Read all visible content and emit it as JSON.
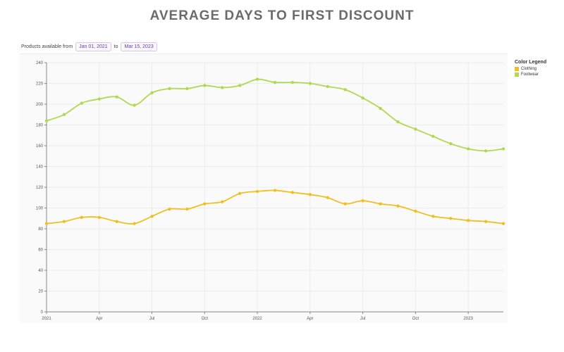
{
  "title": "AVERAGE DAYS TO FIRST DISCOUNT",
  "filter": {
    "prefix": "Products available from",
    "start": "Jan 01, 2021",
    "joiner": "to",
    "end": "Mar 15, 2023"
  },
  "legend": {
    "title": "Color Legend",
    "items": [
      {
        "label": "Clothing",
        "color": "#f0c020"
      },
      {
        "label": "Footwear",
        "color": "#b0d850"
      }
    ]
  },
  "chart_data": {
    "type": "line",
    "title": "AVERAGE DAYS TO FIRST DISCOUNT",
    "xlabel": "",
    "ylabel": "",
    "ylim": [
      0,
      240
    ],
    "yticks": [
      0,
      20,
      40,
      60,
      80,
      100,
      120,
      140,
      160,
      180,
      200,
      220,
      240
    ],
    "x": [
      "2021-01",
      "2021-02",
      "2021-03",
      "2021-04",
      "2021-05",
      "2021-06",
      "2021-07",
      "2021-08",
      "2021-09",
      "2021-10",
      "2021-11",
      "2021-12",
      "2022-01",
      "2022-02",
      "2022-03",
      "2022-04",
      "2022-05",
      "2022-06",
      "2022-07",
      "2022-08",
      "2022-09",
      "2022-10",
      "2022-11",
      "2022-12",
      "2023-01",
      "2023-02",
      "2023-03"
    ],
    "xticks": [
      {
        "x": "2021-01",
        "label": "2021"
      },
      {
        "x": "2021-04",
        "label": "Apr"
      },
      {
        "x": "2021-07",
        "label": "Jul"
      },
      {
        "x": "2021-10",
        "label": "Oct"
      },
      {
        "x": "2022-01",
        "label": "2022"
      },
      {
        "x": "2022-04",
        "label": "Apr"
      },
      {
        "x": "2022-07",
        "label": "Jul"
      },
      {
        "x": "2022-10",
        "label": "Oct"
      },
      {
        "x": "2023-01",
        "label": "2023"
      }
    ],
    "grid": true,
    "legend_position": "right",
    "series": [
      {
        "name": "Clothing",
        "color": "#f0c020",
        "values": [
          85,
          87,
          91,
          91,
          87,
          85,
          92,
          99,
          99,
          104,
          106,
          114,
          116,
          117,
          115,
          113,
          110,
          104,
          107,
          104,
          102,
          97,
          92,
          90,
          88,
          87,
          85
        ]
      },
      {
        "name": "Footwear",
        "color": "#b0d850",
        "values": [
          184,
          190,
          201,
          205,
          207,
          199,
          211,
          215,
          215,
          218,
          216,
          218,
          224,
          221,
          221,
          220,
          217,
          214,
          206,
          196,
          183,
          176,
          169,
          162,
          157,
          155,
          157
        ]
      }
    ]
  }
}
